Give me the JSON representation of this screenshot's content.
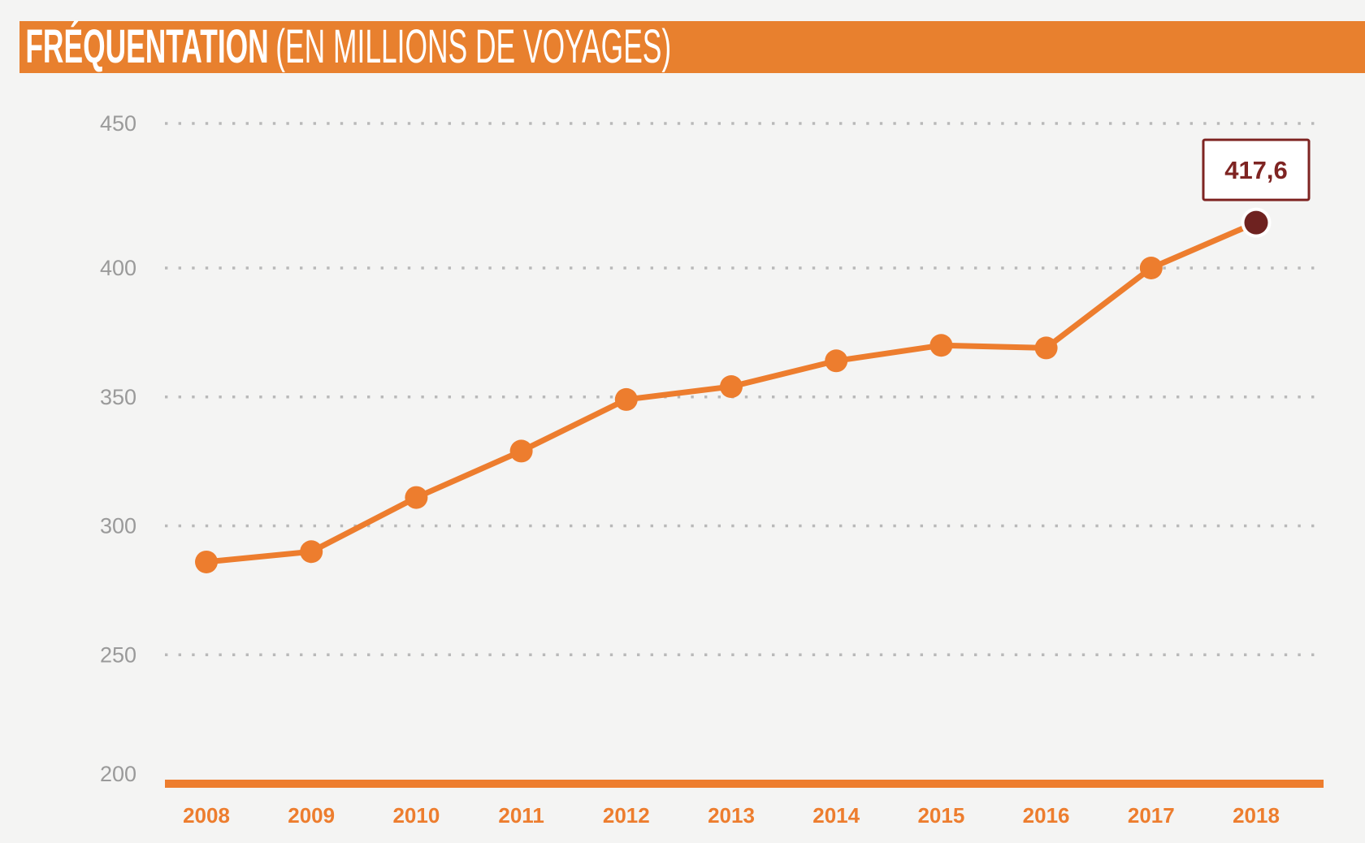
{
  "header": {
    "title": "FRÉQUENTATION",
    "subtitle": "(EN MILLIONS DE VOYAGES)",
    "bar_color": "#e8802e",
    "text_color": "#ffffff"
  },
  "chart_data": {
    "type": "line",
    "title": "FRÉQUENTATION (EN MILLIONS DE VOYAGES)",
    "categories": [
      "2008",
      "2009",
      "2010",
      "2011",
      "2012",
      "2013",
      "2014",
      "2015",
      "2016",
      "2017",
      "2018"
    ],
    "series": [
      {
        "name": "Fréquentation (en millions de voyages)",
        "values": [
          286,
          290,
          311,
          329,
          349,
          354,
          364,
          370,
          369,
          400,
          417.6
        ]
      }
    ],
    "ylim": [
      200,
      450
    ],
    "yticks": [
      450,
      400,
      350,
      300,
      250,
      200
    ],
    "xlabel": "",
    "ylabel": "",
    "grid": "horizontal-dotted",
    "legend": "none",
    "annotation": {
      "category": "2018",
      "text": "417,6"
    },
    "colors": {
      "line": "#ed7d2e",
      "point": "#ed7d2e",
      "last_point_fill": "#6e2220",
      "last_point_ring": "#ffffff",
      "annotation_text": "#7e2422",
      "annotation_border": "#7e2422",
      "annotation_bg": "#ffffff",
      "grid_dots": "#b9b9b9",
      "y_tick_labels": "#9a9a9a",
      "x_tick_labels": "#ed7d2e",
      "axis_line": "#ed7d2e",
      "background": "#f4f4f3"
    }
  }
}
